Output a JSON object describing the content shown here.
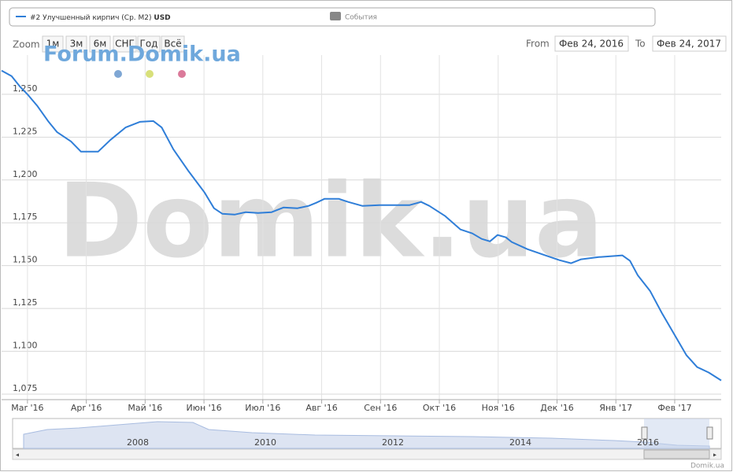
{
  "chart_data": {
    "type": "line",
    "watermark": "Domik.ua",
    "forum_watermark": "Forum.Domik.ua",
    "credit": "Domik.ua",
    "range_selector": {
      "zoom_label": "Zoom",
      "buttons": [
        "1м",
        "3м",
        "6м",
        "СНГ",
        "Год",
        "Всё"
      ],
      "from_label": "From",
      "from": "Фев 24, 2016",
      "to_label": "To",
      "to": "Фев 24, 2017"
    },
    "legend_unit": "USD",
    "events_label": "События",
    "xlim": [
      -0.44,
      11.79
    ],
    "xticks": [
      {
        "value": 0,
        "label": "Mar '16"
      },
      {
        "value": 1,
        "label": "Apr '16"
      },
      {
        "value": 2,
        "label": "Май '16"
      },
      {
        "value": 3,
        "label": "Июн '16"
      },
      {
        "value": 4,
        "label": "Июл '16"
      },
      {
        "value": 5,
        "label": "Авг '16"
      },
      {
        "value": 6,
        "label": "Сен '16"
      },
      {
        "value": 7,
        "label": "Окт '16"
      },
      {
        "value": 8,
        "label": "Ноя '16"
      },
      {
        "value": 9,
        "label": "Дек '16"
      },
      {
        "value": 10,
        "label": "Янв '17"
      },
      {
        "value": 11,
        "label": "Фев '17"
      }
    ],
    "ylim": [
      1071.8,
      1272.9
    ],
    "yticks": [
      {
        "value": 1075,
        "label": "1,075"
      },
      {
        "value": 1100,
        "label": "1,100"
      },
      {
        "value": 1125,
        "label": "1,125"
      },
      {
        "value": 1150,
        "label": "1,150"
      },
      {
        "value": 1175,
        "label": "1,175"
      },
      {
        "value": 1200,
        "label": "1,200"
      },
      {
        "value": 1225,
        "label": "1,225"
      },
      {
        "value": 1250,
        "label": "1,250"
      }
    ],
    "grid": true,
    "navigator_labels": [
      "2008",
      "2010",
      "2012",
      "2014",
      "2016"
    ],
    "series": [
      {
        "name": "#2 Улучшенный кирпич (Ср. М2)",
        "color": "#2f7ed8",
        "x": [
          -0.44,
          -0.27,
          -0.13,
          0,
          0.17,
          0.36,
          0.5,
          0.74,
          0.91,
          1,
          1.2,
          1.41,
          1.67,
          1.91,
          2.14,
          2.28,
          2.48,
          2.74,
          3.01,
          3.17,
          3.31,
          3.52,
          3.71,
          3.92,
          4.15,
          4.35,
          4.59,
          4.78,
          4.91,
          5.05,
          5.29,
          5.45,
          5.69,
          5.98,
          6.49,
          6.69,
          6.83,
          7.1,
          7.36,
          7.56,
          7.72,
          7.86,
          7.99,
          8.13,
          8.23,
          8.5,
          8.8,
          9.04,
          9.24,
          9.41,
          9.71,
          10.11,
          10.24,
          10.37,
          10.58,
          10.78,
          10.99,
          11.2,
          11.38,
          11.58,
          11.79
        ],
        "values": [
          1263.8,
          1260.6,
          1254.6,
          1250,
          1243.1,
          1233.9,
          1228,
          1222.5,
          1216.5,
          1216.5,
          1216.5,
          1223.4,
          1230.7,
          1233.9,
          1234.4,
          1230.7,
          1217.9,
          1205,
          1192.7,
          1183.5,
          1180.3,
          1179.8,
          1181.2,
          1180.7,
          1181.2,
          1183.9,
          1183.5,
          1184.9,
          1186.7,
          1189,
          1189,
          1187.2,
          1184.9,
          1185.3,
          1185.3,
          1187.2,
          1184.9,
          1178.9,
          1171.1,
          1168.8,
          1165.6,
          1164.2,
          1167.9,
          1166.5,
          1163.8,
          1159.6,
          1156,
          1153.2,
          1151.4,
          1153.7,
          1155,
          1156,
          1152.8,
          1144.5,
          1135.3,
          1122.5,
          1110.1,
          1097.7,
          1090.8,
          1087.6,
          1083
        ]
      }
    ]
  }
}
